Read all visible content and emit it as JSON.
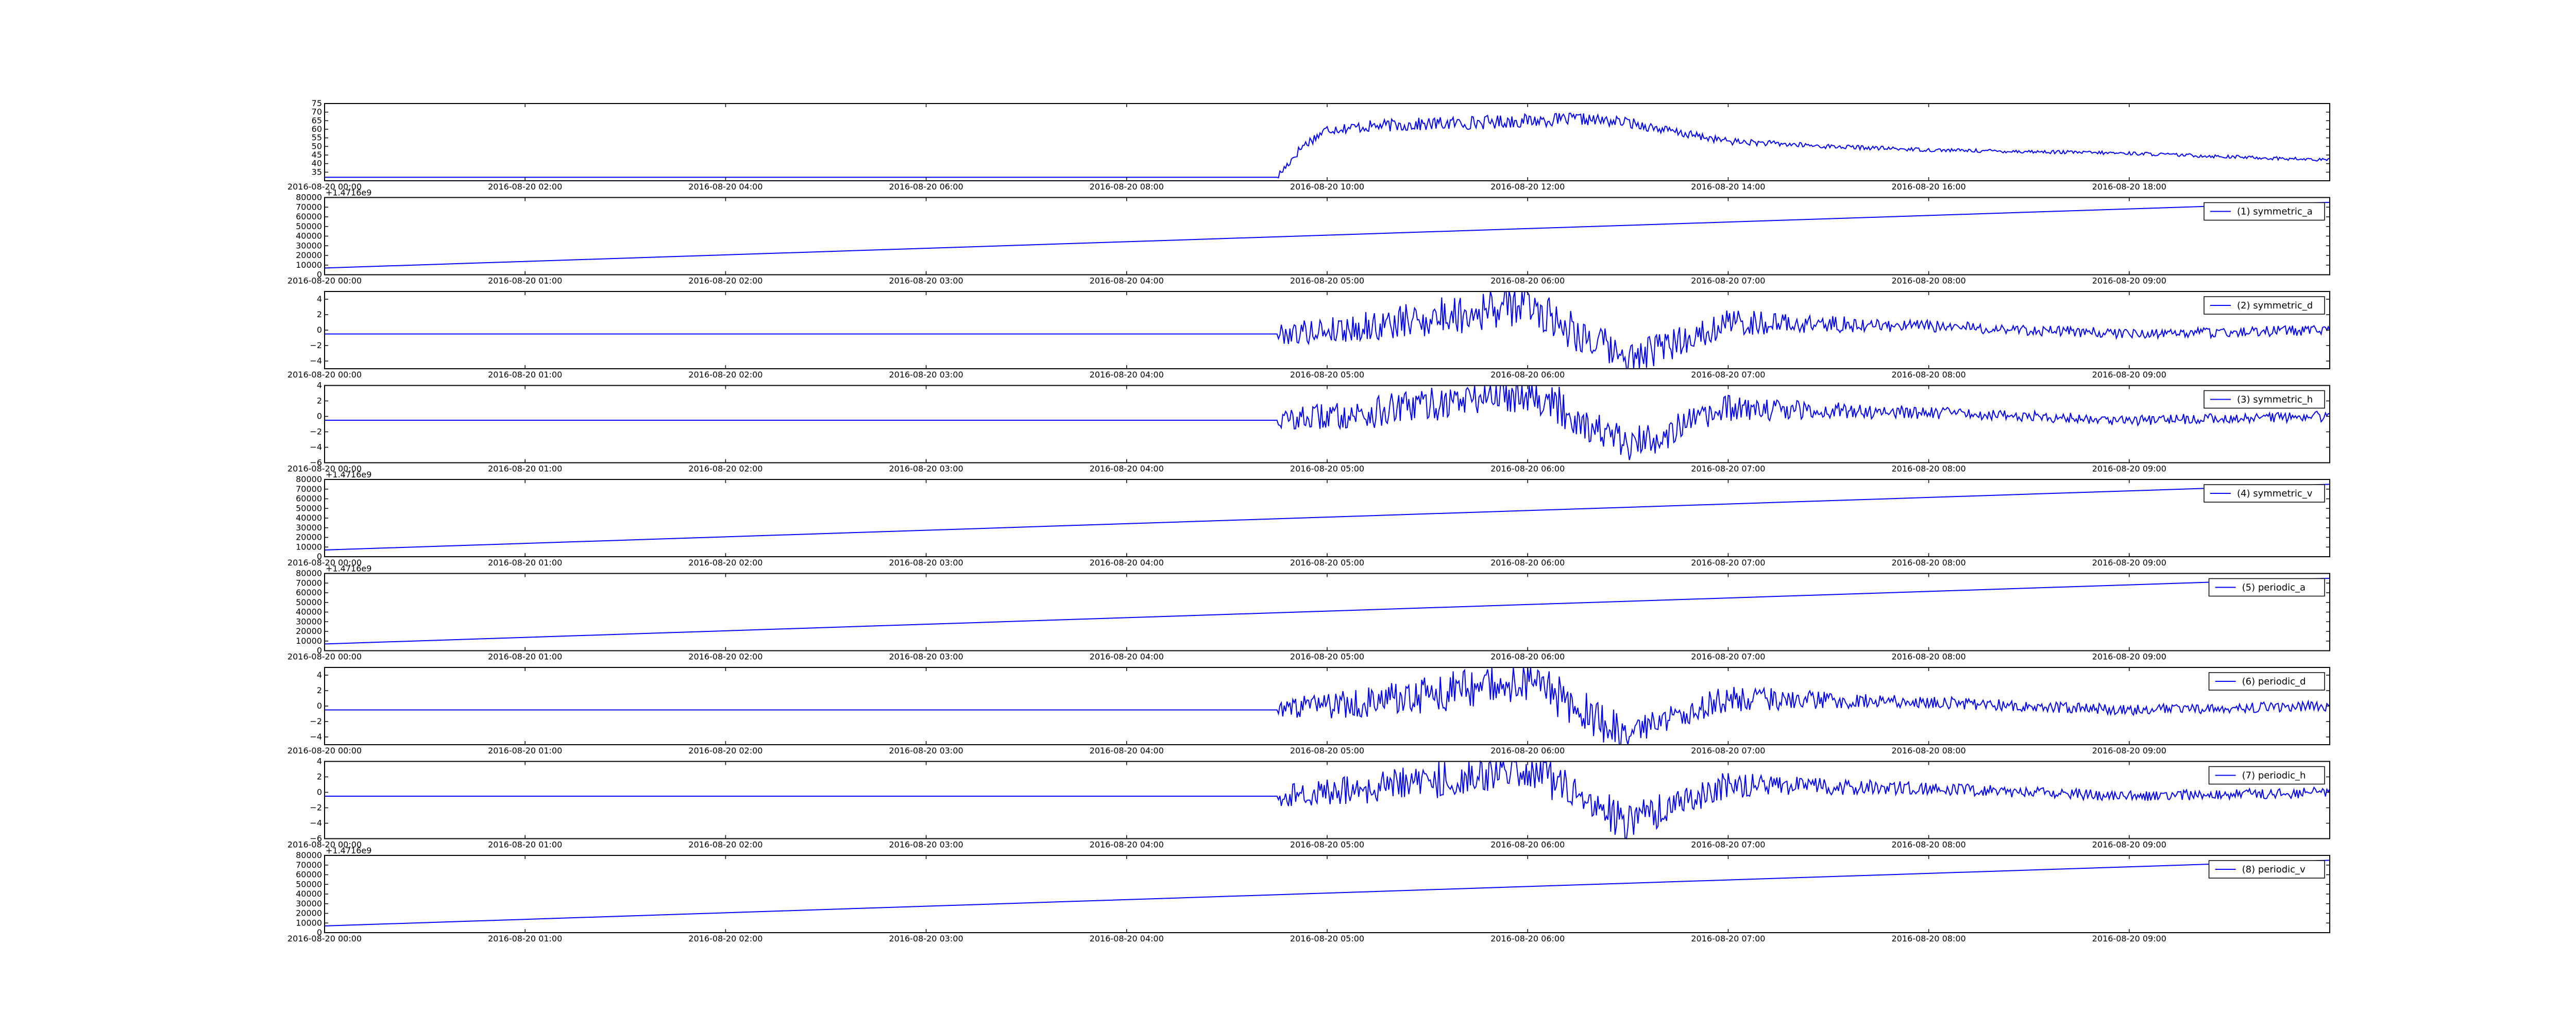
{
  "figure": {
    "colors": {
      "line": "#0000ff",
      "axes": "#000000",
      "background": "#ffffff"
    }
  },
  "chart_data": [
    {
      "type": "line",
      "legend": null,
      "offset_text": "",
      "xticks": [
        "2016-08-20 00:00",
        "2016-08-20 02:00",
        "2016-08-20 04:00",
        "2016-08-20 06:00",
        "2016-08-20 08:00",
        "2016-08-20 10:00",
        "2016-08-20 12:00",
        "2016-08-20 14:00",
        "2016-08-20 16:00",
        "2016-08-20 18:00"
      ],
      "ylim": [
        30,
        75
      ],
      "yticks": [
        "35",
        "40",
        "45",
        "50",
        "55",
        "60",
        "65",
        "70",
        "75"
      ],
      "series": [
        {
          "x": [
            "2016-08-20 00:00",
            "2016-08-20 09:30",
            "2016-08-20 09:45",
            "2016-08-20 10:00",
            "2016-08-20 10:30",
            "2016-08-20 11:00",
            "2016-08-20 11:30",
            "2016-08-20 12:00",
            "2016-08-20 12:30",
            "2016-08-20 13:00",
            "2016-08-20 13:30",
            "2016-08-20 14:00",
            "2016-08-20 15:00",
            "2016-08-20 16:00",
            "2016-08-20 17:00",
            "2016-08-20 18:00",
            "2016-08-20 19:00",
            "2016-08-20 20:00"
          ],
          "y": [
            32,
            32,
            50,
            60,
            62,
            63,
            64,
            65,
            66,
            64,
            58,
            53,
            50,
            48,
            47,
            46,
            44,
            42
          ]
        }
      ]
    },
    {
      "type": "line",
      "legend": "(1) symmetric_a",
      "offset_text": "+1.4716e9",
      "xticks": [
        "2016-08-20 00:00",
        "2016-08-20 01:00",
        "2016-08-20 02:00",
        "2016-08-20 03:00",
        "2016-08-20 04:00",
        "2016-08-20 05:00",
        "2016-08-20 06:00",
        "2016-08-20 07:00",
        "2016-08-20 08:00",
        "2016-08-20 09:00"
      ],
      "ylim": [
        0,
        80000
      ],
      "yticks": [
        "0",
        "10000",
        "20000",
        "30000",
        "40000",
        "50000",
        "60000",
        "70000",
        "80000"
      ],
      "series": [
        {
          "x": [
            "2016-08-20 00:00",
            "2016-08-20 10:00"
          ],
          "y": [
            7000,
            75000
          ]
        }
      ]
    },
    {
      "type": "line",
      "legend": "(2) symmetric_d",
      "offset_text": "",
      "xticks": [
        "2016-08-20 00:00",
        "2016-08-20 01:00",
        "2016-08-20 02:00",
        "2016-08-20 03:00",
        "2016-08-20 04:00",
        "2016-08-20 05:00",
        "2016-08-20 06:00",
        "2016-08-20 07:00",
        "2016-08-20 08:00",
        "2016-08-20 09:00"
      ],
      "ylim": [
        -5,
        5
      ],
      "yticks": [
        "−4",
        "−2",
        "0",
        "2",
        "4"
      ],
      "series": [
        {
          "x": [
            "2016-08-20 00:00",
            "2016-08-20 04:45",
            "2016-08-20 05:15",
            "2016-08-20 06:00",
            "2016-08-20 06:30",
            "2016-08-20 07:00",
            "2016-08-20 08:00",
            "2016-08-20 09:00",
            "2016-08-20 10:00"
          ],
          "y": [
            -0.5,
            -0.5,
            0.5,
            3.5,
            -4,
            1,
            0.5,
            -0.5,
            0
          ]
        }
      ]
    },
    {
      "type": "line",
      "legend": "(3) symmetric_h",
      "offset_text": "",
      "xticks": [
        "2016-08-20 00:00",
        "2016-08-20 01:00",
        "2016-08-20 02:00",
        "2016-08-20 03:00",
        "2016-08-20 04:00",
        "2016-08-20 05:00",
        "2016-08-20 06:00",
        "2016-08-20 07:00",
        "2016-08-20 08:00",
        "2016-08-20 09:00"
      ],
      "ylim": [
        -6,
        4
      ],
      "yticks": [
        "−6",
        "−4",
        "−2",
        "0",
        "2",
        "4"
      ],
      "series": [
        {
          "x": [
            "2016-08-20 00:00",
            "2016-08-20 04:45",
            "2016-08-20 05:15",
            "2016-08-20 06:00",
            "2016-08-20 06:30",
            "2016-08-20 07:00",
            "2016-08-20 08:00",
            "2016-08-20 09:00",
            "2016-08-20 10:00"
          ],
          "y": [
            -0.5,
            -0.5,
            0.5,
            3.5,
            -4,
            1,
            0.5,
            -0.5,
            0
          ]
        }
      ]
    },
    {
      "type": "line",
      "legend": "(4) symmetric_v",
      "offset_text": "+1.4716e9",
      "xticks": [
        "2016-08-20 00:00",
        "2016-08-20 01:00",
        "2016-08-20 02:00",
        "2016-08-20 03:00",
        "2016-08-20 04:00",
        "2016-08-20 05:00",
        "2016-08-20 06:00",
        "2016-08-20 07:00",
        "2016-08-20 08:00",
        "2016-08-20 09:00"
      ],
      "ylim": [
        0,
        80000
      ],
      "yticks": [
        "0",
        "10000",
        "20000",
        "30000",
        "40000",
        "50000",
        "60000",
        "70000",
        "80000"
      ],
      "series": [
        {
          "x": [
            "2016-08-20 00:00",
            "2016-08-20 10:00"
          ],
          "y": [
            7000,
            75000
          ]
        }
      ]
    },
    {
      "type": "line",
      "legend": "(5) periodic_a",
      "offset_text": "+1.4716e9",
      "xticks": [
        "2016-08-20 00:00",
        "2016-08-20 01:00",
        "2016-08-20 02:00",
        "2016-08-20 03:00",
        "2016-08-20 04:00",
        "2016-08-20 05:00",
        "2016-08-20 06:00",
        "2016-08-20 07:00",
        "2016-08-20 08:00",
        "2016-08-20 09:00"
      ],
      "ylim": [
        0,
        80000
      ],
      "yticks": [
        "0",
        "10000",
        "20000",
        "30000",
        "40000",
        "50000",
        "60000",
        "70000",
        "80000"
      ],
      "series": [
        {
          "x": [
            "2016-08-20 00:00",
            "2016-08-20 10:00"
          ],
          "y": [
            7000,
            75000
          ]
        }
      ]
    },
    {
      "type": "line",
      "legend": "(6) periodic_d",
      "offset_text": "",
      "xticks": [
        "2016-08-20 00:00",
        "2016-08-20 01:00",
        "2016-08-20 02:00",
        "2016-08-20 03:00",
        "2016-08-20 04:00",
        "2016-08-20 05:00",
        "2016-08-20 06:00",
        "2016-08-20 07:00",
        "2016-08-20 08:00",
        "2016-08-20 09:00"
      ],
      "ylim": [
        -5,
        5
      ],
      "yticks": [
        "−4",
        "−2",
        "0",
        "2",
        "4"
      ],
      "series": [
        {
          "x": [
            "2016-08-20 00:00",
            "2016-08-20 04:45",
            "2016-08-20 05:15",
            "2016-08-20 06:00",
            "2016-08-20 06:30",
            "2016-08-20 07:00",
            "2016-08-20 08:00",
            "2016-08-20 09:00",
            "2016-08-20 10:00"
          ],
          "y": [
            -0.5,
            -0.5,
            0.5,
            3.5,
            -4,
            1,
            0.5,
            -0.5,
            0
          ]
        }
      ]
    },
    {
      "type": "line",
      "legend": "(7) periodic_h",
      "offset_text": "",
      "xticks": [
        "2016-08-20 00:00",
        "2016-08-20 01:00",
        "2016-08-20 02:00",
        "2016-08-20 03:00",
        "2016-08-20 04:00",
        "2016-08-20 05:00",
        "2016-08-20 06:00",
        "2016-08-20 07:00",
        "2016-08-20 08:00",
        "2016-08-20 09:00"
      ],
      "ylim": [
        -6,
        4
      ],
      "yticks": [
        "−6",
        "−4",
        "−2",
        "0",
        "2",
        "4"
      ],
      "series": [
        {
          "x": [
            "2016-08-20 00:00",
            "2016-08-20 04:45",
            "2016-08-20 05:15",
            "2016-08-20 06:00",
            "2016-08-20 06:30",
            "2016-08-20 07:00",
            "2016-08-20 08:00",
            "2016-08-20 09:00",
            "2016-08-20 10:00"
          ],
          "y": [
            -0.5,
            -0.5,
            0.5,
            3.5,
            -4,
            1,
            0.5,
            -0.5,
            0
          ]
        }
      ]
    },
    {
      "type": "line",
      "legend": "(8) periodic_v",
      "offset_text": "+1.4716e9",
      "xticks": [
        "2016-08-20 00:00",
        "2016-08-20 01:00",
        "2016-08-20 02:00",
        "2016-08-20 03:00",
        "2016-08-20 04:00",
        "2016-08-20 05:00",
        "2016-08-20 06:00",
        "2016-08-20 07:00",
        "2016-08-20 08:00",
        "2016-08-20 09:00"
      ],
      "ylim": [
        0,
        80000
      ],
      "yticks": [
        "0",
        "10000",
        "20000",
        "30000",
        "40000",
        "50000",
        "60000",
        "70000",
        "80000"
      ],
      "series": [
        {
          "x": [
            "2016-08-20 00:00",
            "2016-08-20 10:00"
          ],
          "y": [
            7000,
            75000
          ]
        }
      ]
    }
  ]
}
